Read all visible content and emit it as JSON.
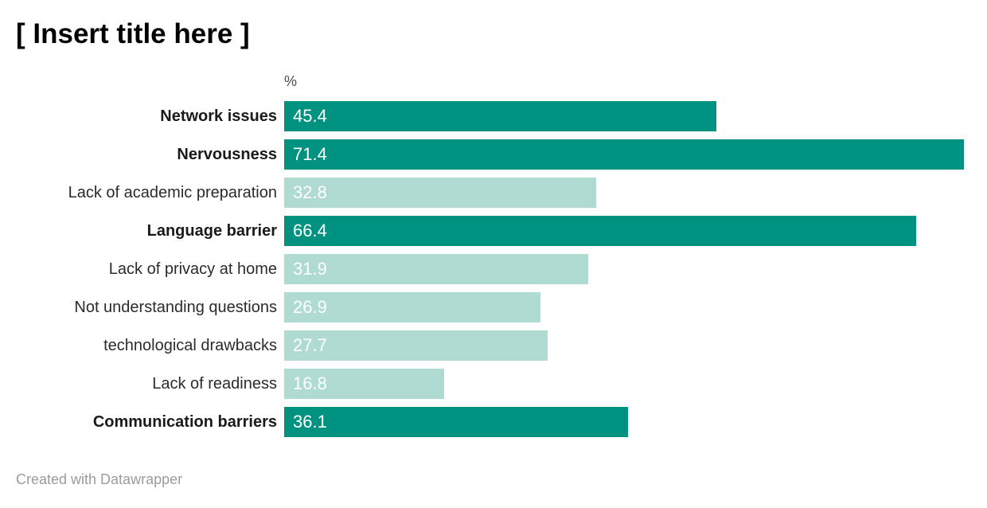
{
  "title": "[ Insert title here ]",
  "axis": {
    "unit_label": "%"
  },
  "footer": {
    "attribution": "Created with Datawrapper"
  },
  "colors": {
    "bar_highlight": "#009280",
    "bar_muted": "#afdbd2",
    "value_label": "#ffffff"
  },
  "chart_data": {
    "type": "bar",
    "orientation": "horizontal",
    "title": "[ Insert title here ]",
    "xlabel": "%",
    "ylabel": "",
    "xlim": [
      0,
      71.4
    ],
    "grid": false,
    "legend": false,
    "value_labels_inside_bars": true,
    "categories": [
      "Network issues",
      "Nervousness",
      "Lack of academic preparation",
      "Language barrier",
      "Lack of privacy at home",
      "Not understanding questions",
      "technological drawbacks",
      "Lack of readiness",
      "Communication barriers"
    ],
    "values": [
      45.4,
      71.4,
      32.8,
      66.4,
      31.9,
      26.9,
      27.7,
      16.8,
      36.1
    ],
    "highlighted": [
      true,
      true,
      false,
      true,
      false,
      false,
      false,
      false,
      true
    ]
  }
}
